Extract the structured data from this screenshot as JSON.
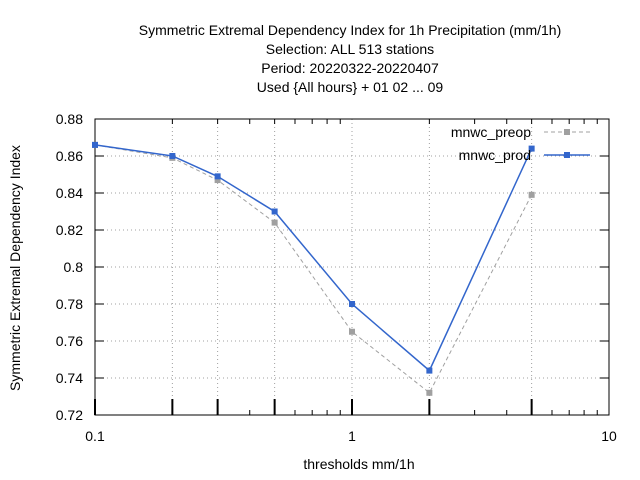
{
  "chart_data": {
    "type": "line",
    "title_lines": [
      "Symmetric Extremal Dependency Index  for 1h Precipitation (mm/1h)",
      "Selection: ALL    513 stations",
      "Period: 20220322-20220407",
      "Used {All hours} + 01 02 ... 09"
    ],
    "xlabel": "thresholds mm/1h",
    "ylabel": "Symmetric Extremal Dependency Index",
    "xscale": "log",
    "xlim": [
      0.1,
      10
    ],
    "ylim": [
      0.72,
      0.88
    ],
    "x_tick_labels": [
      "0.1",
      "1",
      "10"
    ],
    "y_tick_labels": [
      "0.72",
      "0.74",
      "0.76",
      "0.78",
      "0.8",
      "0.82",
      "0.84",
      "0.86",
      "0.88"
    ],
    "threshold_ticks": [
      0.1,
      0.2,
      0.3,
      0.5,
      1,
      2,
      5
    ],
    "grid": true,
    "legend_position": "top-right",
    "series": [
      {
        "name": "mnwc_preop",
        "color": "#a0a0a0",
        "dash": "dashed",
        "x": [
          0.1,
          0.2,
          0.3,
          0.5,
          1,
          2,
          5
        ],
        "y": [
          0.866,
          0.859,
          0.847,
          0.824,
          0.765,
          0.732,
          0.839
        ]
      },
      {
        "name": "mnwc_prod",
        "color": "#3366cc",
        "dash": "solid",
        "x": [
          0.1,
          0.2,
          0.3,
          0.5,
          1,
          2,
          5
        ],
        "y": [
          0.866,
          0.86,
          0.849,
          0.83,
          0.78,
          0.744,
          0.864
        ]
      }
    ]
  }
}
